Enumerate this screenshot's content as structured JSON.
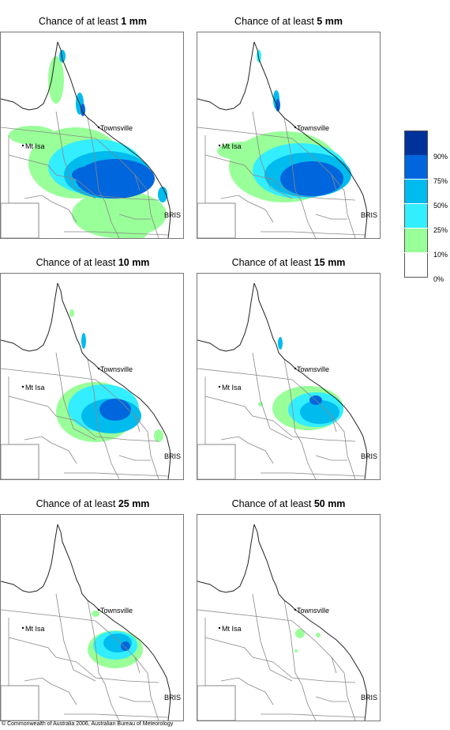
{
  "panels": [
    {
      "title_prefix": "Chance of at least ",
      "threshold": "1 mm"
    },
    {
      "title_prefix": "Chance of at least ",
      "threshold": "5 mm"
    },
    {
      "title_prefix": "Chance of at least ",
      "threshold": "10 mm"
    },
    {
      "title_prefix": "Chance of at least ",
      "threshold": "15 mm"
    },
    {
      "title_prefix": "Chance of at least ",
      "threshold": "25 mm"
    },
    {
      "title_prefix": "Chance of at least ",
      "threshold": "50 mm"
    }
  ],
  "places": {
    "townsville": "Townsville",
    "mt_isa": "Mt Isa",
    "brisbane": "BRIS"
  },
  "legend": {
    "ticks": [
      "90%",
      "75%",
      "50%",
      "25%",
      "10%",
      "0%"
    ],
    "colors": [
      "#003399",
      "#0066dd",
      "#00bbee",
      "#33eeff",
      "#99ff99",
      "#ffffff"
    ]
  },
  "copyright": "© Commonwealth of Australia 2006, Australian Bureau of Meteorology"
}
